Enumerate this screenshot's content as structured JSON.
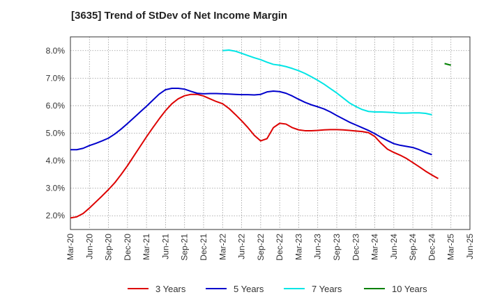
{
  "chart_data": {
    "type": "line",
    "title": "[3635]  Trend of StDev of Net Income Margin",
    "xlabel": "",
    "ylabel": "",
    "ylim": [
      1.5,
      8.5
    ],
    "y_ticks": [
      2.0,
      3.0,
      4.0,
      5.0,
      6.0,
      7.0,
      8.0
    ],
    "y_tick_labels": [
      "2.0%",
      "3.0%",
      "4.0%",
      "5.0%",
      "6.0%",
      "7.0%",
      "8.0%"
    ],
    "x_tick_labels": [
      "Mar-20",
      "Jun-20",
      "Sep-20",
      "Dec-20",
      "Mar-21",
      "Jun-21",
      "Sep-21",
      "Dec-21",
      "Mar-22",
      "Jun-22",
      "Sep-22",
      "Dec-22",
      "Mar-23",
      "Jun-23",
      "Sep-23",
      "Dec-23",
      "Mar-24",
      "Jun-24",
      "Sep-24",
      "Dec-24",
      "Mar-25",
      "Jun-25"
    ],
    "grid": true,
    "legend_position": "bottom",
    "series": [
      {
        "name": "3 Years",
        "color": "#dd0000",
        "points": [
          [
            "Mar-20",
            1.92
          ],
          [
            "Apr-20",
            1.96
          ],
          [
            "May-20",
            2.08
          ],
          [
            "Jun-20",
            2.28
          ],
          [
            "Jul-20",
            2.5
          ],
          [
            "Aug-20",
            2.72
          ],
          [
            "Sep-20",
            2.95
          ],
          [
            "Oct-20",
            3.2
          ],
          [
            "Nov-20",
            3.5
          ],
          [
            "Dec-20",
            3.82
          ],
          [
            "Jan-21",
            4.17
          ],
          [
            "Feb-21",
            4.52
          ],
          [
            "Mar-21",
            4.87
          ],
          [
            "Apr-21",
            5.2
          ],
          [
            "May-21",
            5.52
          ],
          [
            "Jun-21",
            5.82
          ],
          [
            "Jul-21",
            6.07
          ],
          [
            "Aug-21",
            6.25
          ],
          [
            "Sep-21",
            6.36
          ],
          [
            "Oct-21",
            6.41
          ],
          [
            "Nov-21",
            6.41
          ],
          [
            "Dec-21",
            6.35
          ],
          [
            "Jan-22",
            6.25
          ],
          [
            "Feb-22",
            6.15
          ],
          [
            "Mar-22",
            6.07
          ],
          [
            "Apr-22",
            5.9
          ],
          [
            "May-22",
            5.68
          ],
          [
            "Jun-22",
            5.45
          ],
          [
            "Jul-22",
            5.2
          ],
          [
            "Aug-22",
            4.92
          ],
          [
            "Sep-22",
            4.72
          ],
          [
            "Oct-22",
            4.8
          ],
          [
            "Nov-22",
            5.2
          ],
          [
            "Dec-22",
            5.36
          ],
          [
            "Jan-23",
            5.33
          ],
          [
            "Feb-23",
            5.2
          ],
          [
            "Mar-23",
            5.12
          ],
          [
            "Apr-23",
            5.09
          ],
          [
            "May-23",
            5.09
          ],
          [
            "Jun-23",
            5.1
          ],
          [
            "Jul-23",
            5.12
          ],
          [
            "Aug-23",
            5.13
          ],
          [
            "Sep-23",
            5.13
          ],
          [
            "Oct-23",
            5.12
          ],
          [
            "Nov-23",
            5.1
          ],
          [
            "Dec-23",
            5.08
          ],
          [
            "Jan-24",
            5.06
          ],
          [
            "Feb-24",
            5.02
          ],
          [
            "Mar-24",
            4.88
          ],
          [
            "Apr-24",
            4.63
          ],
          [
            "May-24",
            4.42
          ],
          [
            "Jun-24",
            4.3
          ],
          [
            "Jul-24",
            4.2
          ],
          [
            "Aug-24",
            4.08
          ],
          [
            "Sep-24",
            3.93
          ],
          [
            "Oct-24",
            3.78
          ],
          [
            "Nov-24",
            3.62
          ],
          [
            "Dec-24",
            3.48
          ],
          [
            "Jan-25",
            3.35
          ]
        ]
      },
      {
        "name": "5 Years",
        "color": "#0000cc",
        "points": [
          [
            "Mar-20",
            4.4
          ],
          [
            "Apr-20",
            4.4
          ],
          [
            "May-20",
            4.45
          ],
          [
            "Jun-20",
            4.55
          ],
          [
            "Jul-20",
            4.63
          ],
          [
            "Aug-20",
            4.72
          ],
          [
            "Sep-20",
            4.82
          ],
          [
            "Oct-20",
            4.97
          ],
          [
            "Nov-20",
            5.15
          ],
          [
            "Dec-20",
            5.35
          ],
          [
            "Jan-21",
            5.56
          ],
          [
            "Feb-21",
            5.77
          ],
          [
            "Mar-21",
            5.98
          ],
          [
            "Apr-21",
            6.2
          ],
          [
            "May-21",
            6.42
          ],
          [
            "Jun-21",
            6.58
          ],
          [
            "Jul-21",
            6.63
          ],
          [
            "Aug-21",
            6.63
          ],
          [
            "Sep-21",
            6.6
          ],
          [
            "Oct-21",
            6.52
          ],
          [
            "Nov-21",
            6.45
          ],
          [
            "Dec-21",
            6.43
          ],
          [
            "Jan-22",
            6.44
          ],
          [
            "Feb-22",
            6.44
          ],
          [
            "Mar-22",
            6.43
          ],
          [
            "Apr-22",
            6.42
          ],
          [
            "May-22",
            6.41
          ],
          [
            "Jun-22",
            6.4
          ],
          [
            "Jul-22",
            6.4
          ],
          [
            "Aug-22",
            6.39
          ],
          [
            "Sep-22",
            6.41
          ],
          [
            "Oct-22",
            6.5
          ],
          [
            "Nov-22",
            6.53
          ],
          [
            "Dec-22",
            6.51
          ],
          [
            "Jan-23",
            6.45
          ],
          [
            "Feb-23",
            6.35
          ],
          [
            "Mar-23",
            6.23
          ],
          [
            "Apr-23",
            6.12
          ],
          [
            "May-23",
            6.03
          ],
          [
            "Jun-23",
            5.96
          ],
          [
            "Jul-23",
            5.88
          ],
          [
            "Aug-23",
            5.77
          ],
          [
            "Sep-23",
            5.64
          ],
          [
            "Oct-23",
            5.52
          ],
          [
            "Nov-23",
            5.4
          ],
          [
            "Dec-23",
            5.3
          ],
          [
            "Jan-24",
            5.2
          ],
          [
            "Feb-24",
            5.1
          ],
          [
            "Mar-24",
            4.98
          ],
          [
            "Apr-24",
            4.85
          ],
          [
            "May-24",
            4.73
          ],
          [
            "Jun-24",
            4.62
          ],
          [
            "Jul-24",
            4.56
          ],
          [
            "Aug-24",
            4.52
          ],
          [
            "Sep-24",
            4.48
          ],
          [
            "Oct-24",
            4.4
          ],
          [
            "Nov-24",
            4.3
          ],
          [
            "Dec-24",
            4.22
          ]
        ]
      },
      {
        "name": "7 Years",
        "color": "#00e5e5",
        "points": [
          [
            "Mar-22",
            8.0
          ],
          [
            "Apr-22",
            8.02
          ],
          [
            "May-22",
            7.98
          ],
          [
            "Jun-22",
            7.9
          ],
          [
            "Jul-22",
            7.82
          ],
          [
            "Aug-22",
            7.74
          ],
          [
            "Sep-22",
            7.67
          ],
          [
            "Oct-22",
            7.58
          ],
          [
            "Nov-22",
            7.5
          ],
          [
            "Dec-22",
            7.47
          ],
          [
            "Jan-23",
            7.42
          ],
          [
            "Feb-23",
            7.35
          ],
          [
            "Mar-23",
            7.27
          ],
          [
            "Apr-23",
            7.17
          ],
          [
            "May-23",
            7.05
          ],
          [
            "Jun-23",
            6.92
          ],
          [
            "Jul-23",
            6.78
          ],
          [
            "Aug-23",
            6.62
          ],
          [
            "Sep-23",
            6.46
          ],
          [
            "Oct-23",
            6.28
          ],
          [
            "Nov-23",
            6.1
          ],
          [
            "Dec-23",
            5.97
          ],
          [
            "Jan-24",
            5.86
          ],
          [
            "Feb-24",
            5.79
          ],
          [
            "Mar-24",
            5.77
          ],
          [
            "Apr-24",
            5.77
          ],
          [
            "May-24",
            5.76
          ],
          [
            "Jun-24",
            5.75
          ],
          [
            "Jul-24",
            5.73
          ],
          [
            "Aug-24",
            5.73
          ],
          [
            "Sep-24",
            5.74
          ],
          [
            "Oct-24",
            5.74
          ],
          [
            "Nov-24",
            5.72
          ],
          [
            "Dec-24",
            5.67
          ]
        ]
      },
      {
        "name": "10 Years",
        "color": "#008000",
        "points": [
          [
            "Feb-25",
            7.53
          ],
          [
            "Mar-25",
            7.47
          ]
        ]
      }
    ]
  }
}
